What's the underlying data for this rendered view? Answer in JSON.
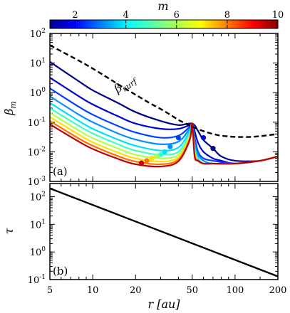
{
  "chart_data": [
    {
      "type": "line",
      "panel_label": "(a)",
      "ylabel": "β_m",
      "yscale": "log",
      "xscale": "log",
      "xlim": [
        5,
        200
      ],
      "ylim": [
        0.001,
        100
      ],
      "ytick_labels": [
        "10^2",
        "10^1",
        "10^0",
        "10^-1",
        "10^-2",
        "10^-3"
      ],
      "colorbar": {
        "label": "m",
        "range": [
          1,
          10
        ],
        "ticks": [
          "2",
          "4",
          "6",
          "8",
          "10"
        ],
        "colormap": "jet"
      },
      "surface_curve": {
        "name": "β_surf",
        "style": "dashed",
        "color": "#000000",
        "x": [
          5,
          6,
          8,
          10,
          13,
          16,
          20,
          25,
          30,
          35,
          40,
          45,
          50,
          60,
          70,
          80,
          100,
          130,
          160,
          200
        ],
        "y": [
          40,
          25,
          12,
          6.5,
          3.0,
          1.6,
          0.85,
          0.45,
          0.28,
          0.18,
          0.12,
          0.09,
          0.07,
          0.05,
          0.04,
          0.035,
          0.032,
          0.032,
          0.035,
          0.04
        ]
      },
      "series": [
        {
          "m": 1,
          "color": "#00008f",
          "x": [
            5,
            8,
            10,
            15,
            20,
            30,
            40,
            50,
            55,
            60,
            70,
            80,
            100,
            150,
            200
          ],
          "y": [
            11,
            2.4,
            1.2,
            0.45,
            0.22,
            0.11,
            0.08,
            0.09,
            0.05,
            0.025,
            0.013,
            0.007,
            0.005,
            0.005,
            0.007
          ],
          "marker": [
            70,
            0.013
          ]
        },
        {
          "m": 2,
          "color": "#0000d0",
          "x": [
            5,
            8,
            10,
            15,
            20,
            30,
            40,
            48,
            50,
            52,
            55,
            60,
            70,
            80,
            100,
            150,
            200
          ],
          "y": [
            3.2,
            0.75,
            0.4,
            0.16,
            0.09,
            0.06,
            0.06,
            0.08,
            0.09,
            0.05,
            0.02,
            0.01,
            0.006,
            0.005,
            0.004,
            0.005,
            0.007
          ],
          "marker": [
            60,
            0.03
          ]
        },
        {
          "m": 3,
          "color": "#0040ff",
          "x": [
            5,
            8,
            10,
            15,
            20,
            30,
            40,
            48,
            50,
            52,
            55,
            60,
            70,
            100,
            150,
            200
          ],
          "y": [
            1.4,
            0.33,
            0.18,
            0.075,
            0.045,
            0.03,
            0.035,
            0.07,
            0.09,
            0.03,
            0.01,
            0.006,
            0.005,
            0.004,
            0.005,
            0.007
          ],
          "marker": [
            40,
            0.03
          ]
        },
        {
          "m": 4,
          "color": "#0090ff",
          "x": [
            5,
            8,
            10,
            15,
            20,
            30,
            40,
            48,
            50,
            52,
            55,
            60,
            70,
            100,
            150,
            200
          ],
          "y": [
            0.75,
            0.18,
            0.1,
            0.042,
            0.026,
            0.018,
            0.022,
            0.06,
            0.09,
            0.02,
            0.008,
            0.005,
            0.004,
            0.004,
            0.005,
            0.007
          ],
          "marker": [
            35,
            0.015
          ]
        },
        {
          "m": 5,
          "color": "#00e0ff",
          "x": [
            5,
            8,
            10,
            15,
            20,
            30,
            40,
            48,
            50,
            52,
            55,
            60,
            70,
            100,
            150,
            200
          ],
          "y": [
            0.45,
            0.11,
            0.06,
            0.026,
            0.016,
            0.011,
            0.014,
            0.05,
            0.09,
            0.015,
            0.006,
            0.004,
            0.004,
            0.004,
            0.005,
            0.007
          ],
          "marker": [
            32,
            0.01
          ]
        },
        {
          "m": 6,
          "color": "#40ffc0",
          "x": [
            5,
            8,
            10,
            15,
            20,
            30,
            40,
            48,
            50,
            52,
            55,
            60,
            70,
            100,
            150,
            200
          ],
          "y": [
            0.3,
            0.075,
            0.042,
            0.018,
            0.011,
            0.008,
            0.01,
            0.04,
            0.09,
            0.012,
            0.005,
            0.004,
            0.004,
            0.004,
            0.005,
            0.007
          ],
          "marker": [
            30,
            0.008
          ]
        },
        {
          "m": 7,
          "color": "#b0ff50",
          "x": [
            5,
            8,
            10,
            15,
            20,
            30,
            40,
            48,
            50,
            52,
            55,
            60,
            70,
            100,
            150,
            200
          ],
          "y": [
            0.21,
            0.052,
            0.029,
            0.013,
            0.008,
            0.006,
            0.008,
            0.035,
            0.09,
            0.01,
            0.005,
            0.004,
            0.004,
            0.004,
            0.005,
            0.007
          ],
          "marker": [
            28,
            0.007
          ]
        },
        {
          "m": 8,
          "color": "#ffe000",
          "x": [
            5,
            8,
            10,
            15,
            20,
            30,
            40,
            48,
            50,
            52,
            55,
            60,
            70,
            100,
            150,
            200
          ],
          "y": [
            0.15,
            0.038,
            0.021,
            0.0095,
            0.006,
            0.0047,
            0.0065,
            0.03,
            0.09,
            0.009,
            0.005,
            0.004,
            0.004,
            0.004,
            0.005,
            0.007
          ],
          "marker": [
            26,
            0.006
          ]
        },
        {
          "m": 9,
          "color": "#ff7000",
          "x": [
            5,
            8,
            10,
            15,
            20,
            30,
            40,
            48,
            50,
            52,
            55,
            60,
            70,
            100,
            150,
            200
          ],
          "y": [
            0.11,
            0.028,
            0.016,
            0.0072,
            0.0047,
            0.0038,
            0.0055,
            0.027,
            0.09,
            0.008,
            0.005,
            0.004,
            0.004,
            0.004,
            0.005,
            0.007
          ],
          "marker": [
            24,
            0.005
          ]
        },
        {
          "m": 10,
          "color": "#c00000",
          "x": [
            5,
            8,
            10,
            15,
            20,
            30,
            40,
            48,
            50,
            52,
            55,
            60,
            70,
            100,
            150,
            200
          ],
          "y": [
            0.085,
            0.022,
            0.0125,
            0.0058,
            0.0038,
            0.0032,
            0.0048,
            0.025,
            0.09,
            0.007,
            0.005,
            0.004,
            0.004,
            0.004,
            0.005,
            0.007
          ],
          "marker": [
            22,
            0.0042
          ]
        }
      ]
    },
    {
      "type": "line",
      "panel_label": "(b)",
      "xlabel": "r [au]",
      "ylabel": "τ",
      "xscale": "log",
      "yscale": "log",
      "xlim": [
        5,
        200
      ],
      "ylim": [
        0.1,
        300
      ],
      "x_tick_labels": [
        "5",
        "10",
        "20",
        "50",
        "100",
        "200"
      ],
      "ytick_labels": [
        "10^2",
        "10^1",
        "10^0",
        "10^-1"
      ],
      "series": [
        {
          "x": [
            5,
            200
          ],
          "y": [
            200,
            0.13
          ],
          "color": "#000000"
        }
      ]
    }
  ]
}
